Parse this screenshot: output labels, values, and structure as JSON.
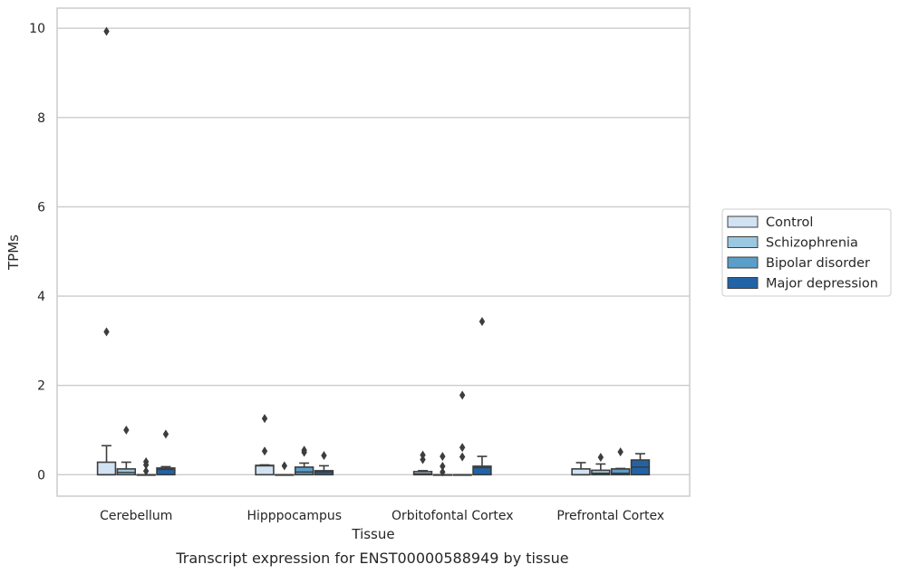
{
  "chart_data": {
    "type": "box",
    "caption": "Transcript expression for ENST00000588949 by tissue",
    "xlabel": "Tissue",
    "ylabel": "TPMs",
    "ylim": [
      -0.48,
      10.45
    ],
    "yticks": [
      0,
      2,
      4,
      6,
      8,
      10
    ],
    "grid": true,
    "legend_position": "right",
    "categories": [
      "Cerebellum",
      "Hipppocampus",
      "Orbitofontal Cortex",
      "Prefrontal Cortex"
    ],
    "series": [
      {
        "name": "Control",
        "color": "#d1e2f2",
        "boxes": [
          {
            "q1": 0,
            "median": 0,
            "q3": 0.28,
            "whisker_low": 0,
            "whisker_high": 0.65,
            "outliers": [
              3.2,
              9.93
            ]
          },
          {
            "q1": 0,
            "median": 0.2,
            "q3": 0.21,
            "whisker_low": 0,
            "whisker_high": 0.22,
            "outliers": [
              0.53,
              1.26
            ]
          },
          {
            "q1": 0,
            "median": 0.02,
            "q3": 0.07,
            "whisker_low": 0,
            "whisker_high": 0.09,
            "outliers": [
              0.34,
              0.44
            ]
          },
          {
            "q1": 0,
            "median": 0,
            "q3": 0.13,
            "whisker_low": 0,
            "whisker_high": 0.27,
            "outliers": []
          }
        ]
      },
      {
        "name": "Schizophrenia",
        "color": "#9ac8e0",
        "boxes": [
          {
            "q1": 0,
            "median": 0.05,
            "q3": 0.13,
            "whisker_low": 0,
            "whisker_high": 0.28,
            "outliers": [
              1.0
            ]
          },
          {
            "q1": 0,
            "median": 0,
            "q3": 0,
            "whisker_low": 0,
            "whisker_high": 0,
            "outliers": [
              0.2
            ]
          },
          {
            "q1": 0,
            "median": 0,
            "q3": 0,
            "whisker_low": 0,
            "whisker_high": 0,
            "outliers": [
              0.06,
              0.19,
              0.41
            ]
          },
          {
            "q1": 0,
            "median": 0.03,
            "q3": 0.1,
            "whisker_low": 0,
            "whisker_high": 0.24,
            "outliers": [
              0.39
            ]
          }
        ]
      },
      {
        "name": "Bipolar disorder",
        "color": "#5a9ec9",
        "boxes": [
          {
            "q1": 0,
            "median": 0,
            "q3": 0,
            "whisker_low": 0,
            "whisker_high": 0,
            "outliers": [
              0.08,
              0.22,
              0.29
            ]
          },
          {
            "q1": 0,
            "median": 0.06,
            "q3": 0.17,
            "whisker_low": 0,
            "whisker_high": 0.26,
            "outliers": [
              0.5,
              0.55
            ]
          },
          {
            "q1": 0,
            "median": 0,
            "q3": 0,
            "whisker_low": 0,
            "whisker_high": 0,
            "outliers": [
              0.4,
              0.61,
              1.78
            ]
          },
          {
            "q1": 0,
            "median": 0.03,
            "q3": 0.13,
            "whisker_low": 0,
            "whisker_high": 0.14,
            "outliers": [
              0.51
            ]
          }
        ]
      },
      {
        "name": "Major depression",
        "color": "#2163a7",
        "boxes": [
          {
            "q1": 0,
            "median": 0.12,
            "q3": 0.15,
            "whisker_low": 0,
            "whisker_high": 0.18,
            "outliers": [
              0.91
            ]
          },
          {
            "q1": 0,
            "median": 0.06,
            "q3": 0.09,
            "whisker_low": 0,
            "whisker_high": 0.2,
            "outliers": [
              0.43
            ]
          },
          {
            "q1": 0,
            "median": 0.16,
            "q3": 0.19,
            "whisker_low": 0,
            "whisker_high": 0.41,
            "outliers": [
              3.43
            ]
          },
          {
            "q1": 0,
            "median": 0.17,
            "q3": 0.33,
            "whisker_low": 0,
            "whisker_high": 0.47,
            "outliers": []
          }
        ]
      }
    ]
  }
}
